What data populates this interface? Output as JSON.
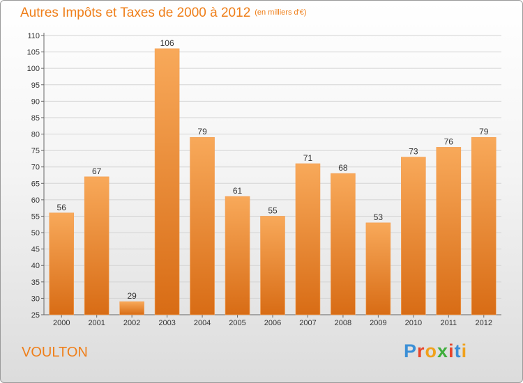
{
  "header": {
    "title": "Autres Impôts et Taxes de 2000 à 2012",
    "unit": "(en milliers d'€)"
  },
  "footer": {
    "commune": "VOULTON",
    "brand": "Proxiti"
  },
  "colors": {
    "accent": "#ef7f1a",
    "bar_top": "#f7a553",
    "bar_bottom": "#d96e17"
  },
  "chart_data": {
    "type": "bar",
    "title": "Autres Impôts et Taxes de 2000 à 2012",
    "subtitle": "(en milliers d'€)",
    "categories": [
      "2000",
      "2001",
      "2002",
      "2003",
      "2004",
      "2005",
      "2006",
      "2007",
      "2008",
      "2009",
      "2010",
      "2011",
      "2012"
    ],
    "values": [
      56,
      67,
      29,
      106,
      79,
      61,
      55,
      71,
      68,
      53,
      73,
      76,
      79
    ],
    "ylim": [
      25,
      110
    ],
    "yticks": [
      25,
      30,
      35,
      40,
      45,
      50,
      55,
      60,
      65,
      70,
      75,
      80,
      85,
      90,
      95,
      100,
      105,
      110
    ],
    "grid": true,
    "data_labels": true
  }
}
